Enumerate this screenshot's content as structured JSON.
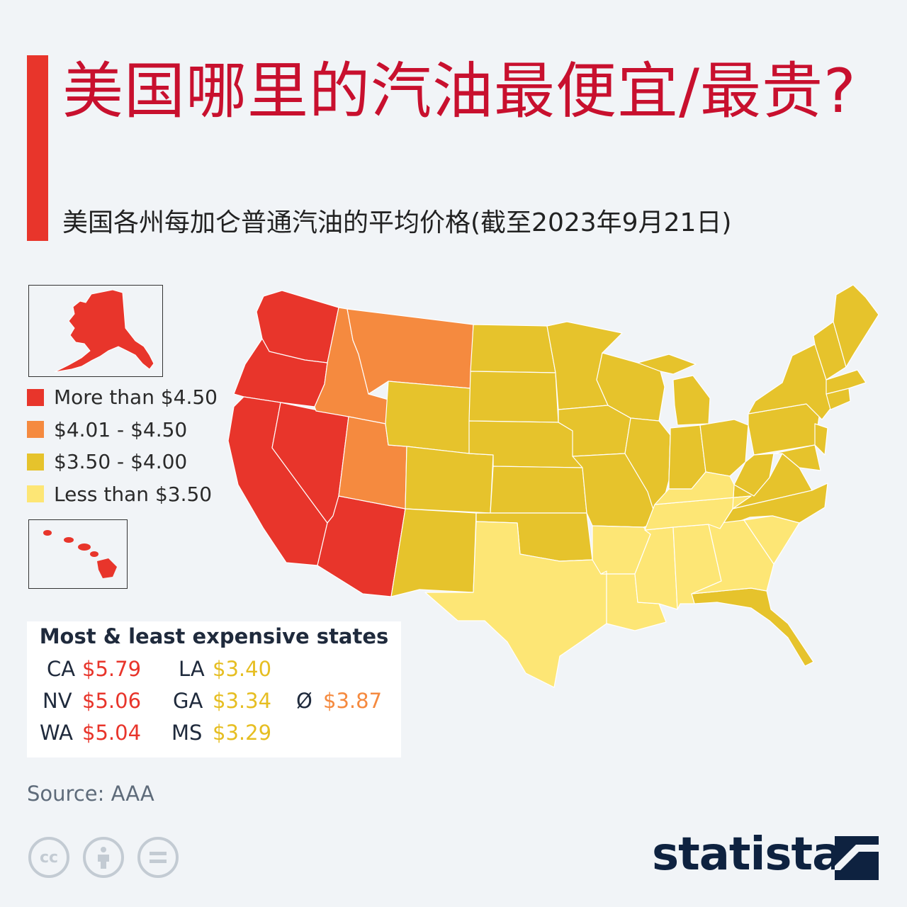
{
  "title": "美国哪里的汽油最便宜/最贵?",
  "subtitle": "美国各州每加仑普通汽油的平均价格(截至2023年9月21日)",
  "colors": {
    "accent": "#e8352b",
    "high": "#e8352b",
    "mid_high": "#f58a3f",
    "mid": "#e6c32c",
    "low": "#fde675",
    "brand": "#0e2240"
  },
  "legend": [
    {
      "label": "More than $4.50",
      "color": "#e8352b"
    },
    {
      "label": "$4.01 - $4.50",
      "color": "#f58a3f"
    },
    {
      "label": "$3.50 - $4.00",
      "color": "#e6c32c"
    },
    {
      "label": "Less than $3.50",
      "color": "#fde675"
    }
  ],
  "table": {
    "title": "Most & least expensive states",
    "most": [
      {
        "state": "CA",
        "price": "$5.79"
      },
      {
        "state": "NV",
        "price": "$5.06"
      },
      {
        "state": "WA",
        "price": "$5.04"
      }
    ],
    "least": [
      {
        "state": "LA",
        "price": "$3.40"
      },
      {
        "state": "GA",
        "price": "$3.34"
      },
      {
        "state": "MS",
        "price": "$3.29"
      }
    ],
    "average": {
      "symbol": "Ø",
      "price": "$3.87"
    }
  },
  "state_tiers": {
    "more_than_4_50": [
      "WA",
      "OR",
      "CA",
      "NV",
      "AZ",
      "AK",
      "HI"
    ],
    "4_01_to_4_50": [
      "ID",
      "MT",
      "UT"
    ],
    "3_50_to_4_00": [
      "WY",
      "CO",
      "NM",
      "ND",
      "SD",
      "NE",
      "KS",
      "OK",
      "MN",
      "IA",
      "MO",
      "WI",
      "IL",
      "MI",
      "IN",
      "OH",
      "PA",
      "NY",
      "WV",
      "VA",
      "NC",
      "FL",
      "ME",
      "NH",
      "VT",
      "MA",
      "RI",
      "CT",
      "NJ",
      "DE",
      "MD"
    ],
    "less_than_3_50": [
      "TX",
      "LA",
      "AR",
      "MS",
      "AL",
      "GA",
      "SC",
      "TN",
      "KY"
    ]
  },
  "source": "Source: AAA",
  "brand": "statista",
  "license_icons": [
    "cc-icon",
    "attribution-icon",
    "no-derivatives-icon"
  ]
}
